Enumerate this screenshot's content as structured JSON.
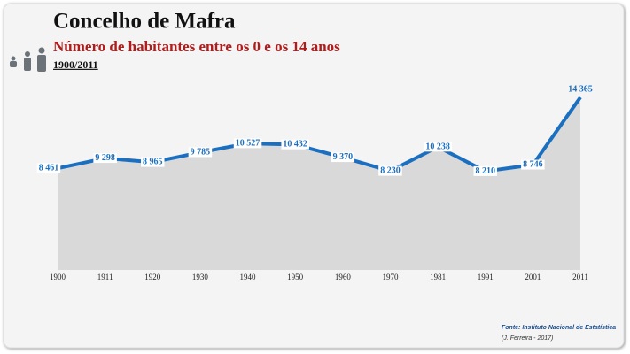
{
  "chart_data": {
    "type": "line",
    "title": "Concelho de Mafra",
    "subtitle": "Número de habitantes entre os 0 e os 14 anos",
    "period": "1900/2011",
    "categories": [
      "1900",
      "1911",
      "1920",
      "1930",
      "1940",
      "1950",
      "1960",
      "1970",
      "1981",
      "1991",
      "2001",
      "2011"
    ],
    "values": [
      8461,
      9298,
      8965,
      9785,
      10527,
      10432,
      9370,
      8230,
      10238,
      8210,
      8746,
      14365
    ],
    "value_labels": [
      "8 461",
      "9 298",
      "8 965",
      "9 785",
      "10 527",
      "10 432",
      "9 370",
      "8 230",
      "10 238",
      "8 210",
      "8 746",
      "14 365"
    ],
    "color": "#1a6fc0",
    "area_color": "#d9d9d9",
    "source": "Fonte: Instituto Nacional de Estatística",
    "author": "(J. Ferreira - 2017)"
  }
}
